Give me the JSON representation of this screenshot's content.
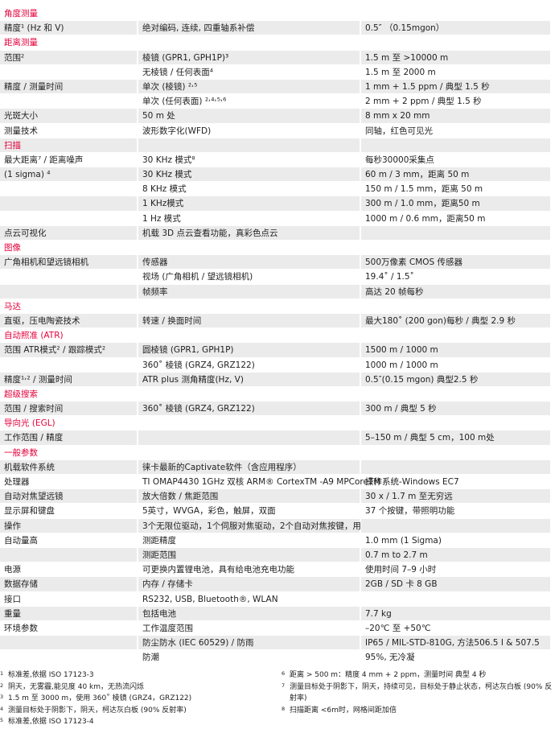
{
  "accent_color": "#e4003b",
  "rows": [
    {
      "section": "角度测量"
    },
    {
      "c1": "精度¹ (Hz 和 V)",
      "c2": "绝对编码, 连续, 四重轴系补偿",
      "c3": "0.5″ （0.15mgon）"
    },
    {
      "section": "距离测量"
    },
    {
      "c1": "范围²",
      "c2": "棱镜 (GPR1, GPH1P)³",
      "c3": "1.5 m 至 >10000 m"
    },
    {
      "c1": "",
      "c2": "无棱镜 / 任何表面⁴",
      "c3": "1.5 m 至 2000 m"
    },
    {
      "c1": "精度 / 测量时间",
      "c2": "单次 (棱镜) ²˒⁵",
      "c3": "1 mm + 1.5 ppm / 典型 1.5 秒"
    },
    {
      "c1": "",
      "c2": "单次 (任何表面) ²˒⁴˒⁵˒⁶",
      "c3": "2 mm + 2 ppm / 典型 1.5 秒"
    },
    {
      "c1": "光斑大小",
      "c2": "50 m 处",
      "c3": "8 mm x 20 mm"
    },
    {
      "c1": "测量技术",
      "c2": "波形数字化(WFD)",
      "c3": "同轴，红色可见光"
    },
    {
      "section": "扫描"
    },
    {
      "c1": "最大距离⁷ / 距离噪声",
      "c2": "30 KHz 模式⁸",
      "c3": "每秒30000采集点"
    },
    {
      "c1": "(1 sigma) ⁴",
      "c2": "30 KHz 模式",
      "c3": "60 m / 3 mm，距离 50 m"
    },
    {
      "c1": "",
      "c2": "8 KHz 模式",
      "c3": "150 m / 1.5 mm，距离 50 m"
    },
    {
      "c1": "",
      "c2": "1 KHz模式",
      "c3": "300 m / 1.0 mm，距离50 m"
    },
    {
      "c1": "",
      "c2": "1 Hz 模式",
      "c3": "1000 m / 0.6 mm，距离50 m"
    },
    {
      "c1": "点云可视化",
      "c2": "机载 3D 点云查看功能，真彩色点云",
      "c3": ""
    },
    {
      "section": "图像"
    },
    {
      "c1": "广角相机和望远镜相机",
      "c2": "传感器",
      "c3": "500万像素 CMOS 传感器"
    },
    {
      "c1": "",
      "c2": "视场 (广角相机 / 望远镜相机)",
      "c3": "19.4˚ / 1.5˚"
    },
    {
      "c1": "",
      "c2": "帧频率",
      "c3": "高达 20 帧每秒"
    },
    {
      "section": "马达"
    },
    {
      "c1": "直驱，压电陶瓷技术",
      "c2": "转速 / 换面时间",
      "c3": "最大180˚ (200 gon)每秒 / 典型 2.9 秒"
    },
    {
      "section": "自动照准 (ATR)"
    },
    {
      "c1": "范围  ATR模式² / 跟踪模式²",
      "c2": "圆棱镜 (GPR1, GPH1P)",
      "c3": "1500 m / 1000 m"
    },
    {
      "c1": "",
      "c2": "360˚ 棱镜 (GRZ4, GRZ122)",
      "c3": "1000 m / 1000 m"
    },
    {
      "c1": "精度¹˒² / 测量时间",
      "c2": "ATR plus 测角精度(Hz, V)",
      "c3": "0.5″(0.15 mgon) 典型2.5 秒"
    },
    {
      "section": "超级搜索"
    },
    {
      "c1": "范围 / 搜索时间",
      "c2": "360˚ 棱镜 (GRZ4, GRZ122)",
      "c3": "300 m / 典型 5 秒"
    },
    {
      "section": "导向光 (EGL)"
    },
    {
      "c1": "工作范围 / 精度",
      "c2": "",
      "c3": "5–150 m / 典型 5 cm，100 m处"
    },
    {
      "section": "一般参数"
    },
    {
      "c1": "机载软件系统",
      "c2": "徕卡最新的Captivate软件（含应用程序）",
      "c3": ""
    },
    {
      "c1": "处理器",
      "c2": "TI OMAP4430 1GHz 双核 ARM® CortexTM -A9 MPCoreTM",
      "c3": "操作系统-Windows EC7"
    },
    {
      "c1": "自动对焦望远镜",
      "c2": "放大倍数 / 焦距范围",
      "c3": "30 x / 1.7 m 至无穷远"
    },
    {
      "c1": "显示屏和键盘",
      "c2": "5英寸，WVGA，彩色，触屏，双面",
      "c3": "37 个按键，带照明功能"
    },
    {
      "c1": "操作",
      "c2": "3个无限位驱动，1个伺服对焦驱动，2个自动对焦按键，用户自定义快捷键",
      "c3": ""
    },
    {
      "c1": "自动量高",
      "c2": "测距精度",
      "c3": "1.0 mm (1 Sigma)"
    },
    {
      "c1": "",
      "c2": "测距范围",
      "c3": "0.7 m to 2.7 m"
    },
    {
      "c1": "电源",
      "c2": "可更换内置锂电池，具有给电池充电功能",
      "c3": "使用时间 7–9 小时"
    },
    {
      "c1": "数据存储",
      "c2": "内存 / 存储卡",
      "c3": "2GB / SD 卡 8 GB"
    },
    {
      "c1": "接口",
      "c2": "RS232, USB, Bluetooth®, WLAN",
      "c3": ""
    },
    {
      "c1": "重量",
      "c2": "包括电池",
      "c3": "7.7 kg"
    },
    {
      "c1": "环境参数",
      "c2": "工作温度范围",
      "c3": "–20℃ 至 +50℃"
    },
    {
      "c1": "",
      "c2": "防尘防水 (IEC 60529) / 防雨",
      "c3": "IP65 / MIL-STD-810G, 方法506.5 I & 507.5"
    },
    {
      "c1": "",
      "c2": "防潮",
      "c3": "95%, 无冷凝"
    }
  ],
  "footnotes_left": [
    {
      "num": "1",
      "text": "标准差,依据 ISO 17123-3"
    },
    {
      "num": "2",
      "text": "阴天，无雾霾,能见度 40 km，无热流闪烁"
    },
    {
      "num": "3",
      "text": "1.5 m 至 3000 m，使用 360˚ 棱镜 (GRZ4，GRZ122)"
    },
    {
      "num": "4",
      "text": "测量目标处于阴影下，阴天，柯达灰白板 (90% 反射率)"
    },
    {
      "num": "5",
      "text": "标准差,依据 ISO 17123-4"
    }
  ],
  "footnotes_right": [
    {
      "num": "6",
      "text": "距离 > 500 m：精度 4 mm + 2 ppm，测量时间 典型 4 秒"
    },
    {
      "num": "7",
      "text": "测量目标处于阴影下，阴天，持续可见，目标处于静止状态，柯达灰白板 (90% 反射率)"
    },
    {
      "num": "8",
      "text": "扫描距离 <6m时，网格间距加倍"
    }
  ]
}
